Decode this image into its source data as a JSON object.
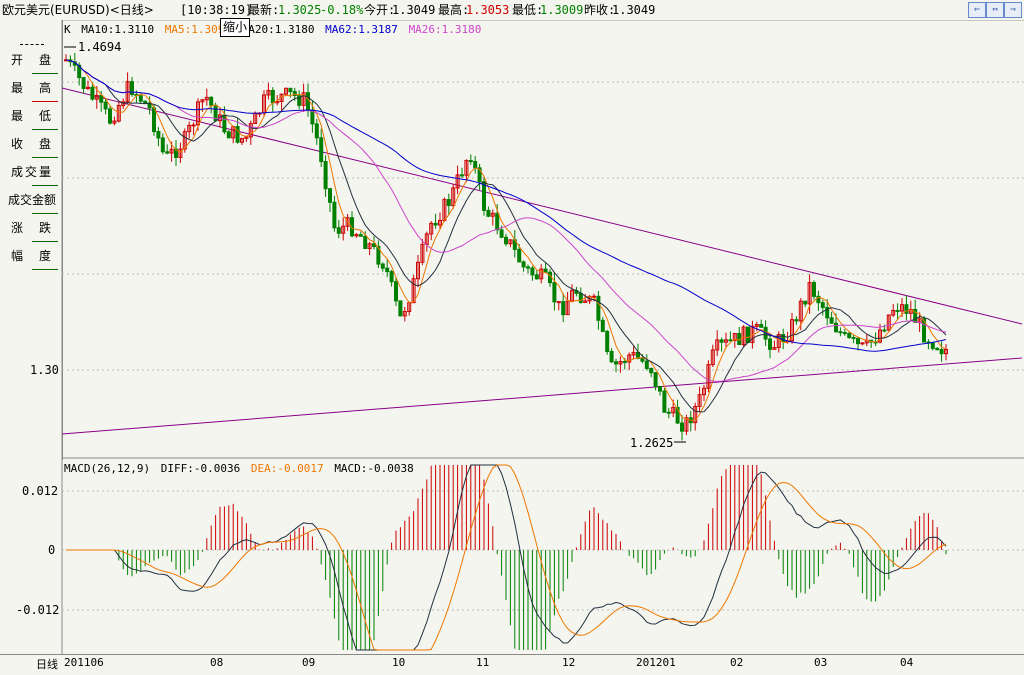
{
  "header": {
    "title": "欧元美元(EURUSD)<日线>",
    "time": "[10:38:19]",
    "latest_label": "最新:",
    "latest_value": "1.3025",
    "latest_change": "-0.18%",
    "open_label": "今开:",
    "open_value": "1.3049",
    "high_label": "最高:",
    "high_value": "1.3053",
    "low_label": "最低:",
    "low_value": "1.3009",
    "prev_label": "昨收:",
    "prev_value": "1.3049",
    "shrink_button": "缩小",
    "buttons": [
      "⇐",
      "⇔",
      "⇒"
    ]
  },
  "sidebar": {
    "items": [
      "开　盘",
      "最　高",
      "最　低",
      "收　盘",
      "成交量",
      "成交金额",
      "涨　跌",
      "幅　度"
    ]
  },
  "price_panel": {
    "ma_legend": [
      {
        "text": "K",
        "color": "#000000"
      },
      {
        "text": "MA10:1.3110",
        "color": "#000000"
      },
      {
        "text": "MA5:1.3096",
        "color": "#ee7700"
      },
      {
        "text": "MA20:1.3180",
        "color": "#000000"
      },
      {
        "text": "MA62:1.3187",
        "color": "#0000cc"
      },
      {
        "text": "MA26:1.3180",
        "color": "#cc44cc"
      }
    ],
    "high_annotation": "1.4694",
    "low_annotation": "1.2625",
    "y_labels": [
      "1.30"
    ],
    "colors": {
      "up": "#cc0000",
      "down": "#008000",
      "ma5": "#ee7700",
      "ma10": "#203040",
      "ma26": "#cc44cc",
      "ma62": "#0000cc",
      "trend": "#880088"
    }
  },
  "macd_panel": {
    "legend": [
      {
        "text": "MACD(26,12,9)",
        "color": "#000000"
      },
      {
        "text": "DIFF:-0.0036",
        "color": "#000000"
      },
      {
        "text": "DEA:-0.0017",
        "color": "#ee7700"
      },
      {
        "text": "MACD:-0.0038",
        "color": "#000000"
      }
    ],
    "y_labels": [
      "0.012",
      "0",
      "-0.012"
    ]
  },
  "x_axis": {
    "label": "日线",
    "ticks": [
      "201106",
      "08",
      "09",
      "10",
      "11",
      "12",
      "201201",
      "02",
      "03",
      "04"
    ]
  }
}
